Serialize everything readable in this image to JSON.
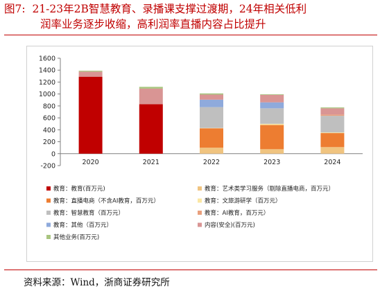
{
  "header": {
    "figure_no": "图7:",
    "title_line1": "21-23年2B智慧教育、录播课支撑过渡期，24年相关低利",
    "title_line2": "润率业务逐步收缩，高利润率直播内容占比提升"
  },
  "footer": {
    "source": "资料来源：Wind，浙商证券研究所"
  },
  "colors": {
    "title": "#c00000",
    "series": [
      "#c00000",
      "#f0c480",
      "#ed7d31",
      "#fbe7a3",
      "#bfbfbf",
      "#e9a07d",
      "#8faadc",
      "#d99594",
      "#a9c580"
    ]
  },
  "chart_data": {
    "type": "bar",
    "stacked": true,
    "categories": [
      "2020",
      "2021",
      "2022",
      "2023",
      "2024"
    ],
    "ylim": [
      -200,
      1600
    ],
    "yticks": [
      "-200",
      "0",
      "200",
      "400",
      "600",
      "800",
      "1000",
      "1200",
      "1400",
      "1600"
    ],
    "grid": false,
    "legend_position": "bottom",
    "series": [
      {
        "name": "教育：教育(百万元)",
        "values": [
          1290,
          830,
          0,
          0,
          0
        ]
      },
      {
        "name": "教育：艺术类学习服务（剔除直播电商，百万元）",
        "values": [
          0,
          0,
          100,
          75,
          110
        ]
      },
      {
        "name": "教育：直播电商（不含AI教育，百万元）",
        "values": [
          0,
          0,
          325,
          405,
          235
        ]
      },
      {
        "name": "教育：文旅游研学（百万元）",
        "values": [
          0,
          0,
          5,
          20,
          10
        ]
      },
      {
        "name": "教育：智慧教育（百万元）",
        "values": [
          0,
          0,
          350,
          260,
          280
        ]
      },
      {
        "name": "教育：AI教育，百万元）",
        "values": [
          0,
          0,
          0,
          0,
          20
        ]
      },
      {
        "name": "教育：其他（百万元）",
        "values": [
          0,
          0,
          125,
          100,
          0
        ]
      },
      {
        "name": "内容(安全)(百万元)",
        "values": [
          85,
          260,
          85,
          125,
          105
        ]
      },
      {
        "name": "其他业务(百万元)",
        "values": [
          15,
          30,
          20,
          10,
          15
        ]
      }
    ]
  }
}
